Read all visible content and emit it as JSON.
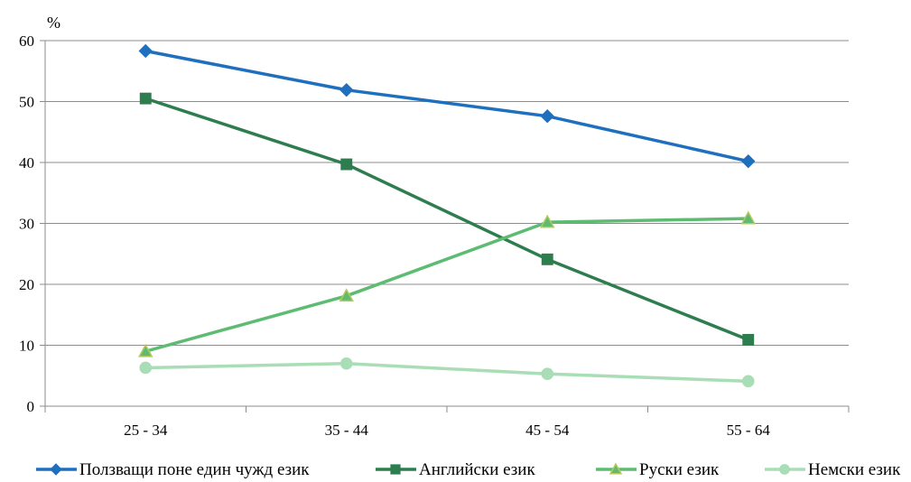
{
  "chart_data": {
    "type": "line",
    "title": "",
    "xlabel": "",
    "ylabel": "%",
    "ylim": [
      0,
      60
    ],
    "yticks": [
      0,
      10,
      20,
      30,
      40,
      50,
      60
    ],
    "grid": "horizontal",
    "legend_position": "bottom",
    "categories": [
      "25 - 34",
      "35 - 44",
      "45 - 54",
      "55 - 64"
    ],
    "series": [
      {
        "name": "Ползващи поне един чужд език",
        "values": [
          58.3,
          51.9,
          47.6,
          40.2
        ],
        "color": "#1F6FBF",
        "marker": "diamond"
      },
      {
        "name": "Английски език",
        "values": [
          50.5,
          39.7,
          24.1,
          10.9
        ],
        "color": "#2E7D4F",
        "marker": "square"
      },
      {
        "name": "Руски език",
        "values": [
          9.0,
          18.1,
          30.2,
          30.8
        ],
        "color": "#5DBB72",
        "marker": "triangle"
      },
      {
        "name": "Немски език",
        "values": [
          6.3,
          7.0,
          5.3,
          4.1
        ],
        "color": "#A8DDB5",
        "marker": "circle"
      }
    ]
  }
}
